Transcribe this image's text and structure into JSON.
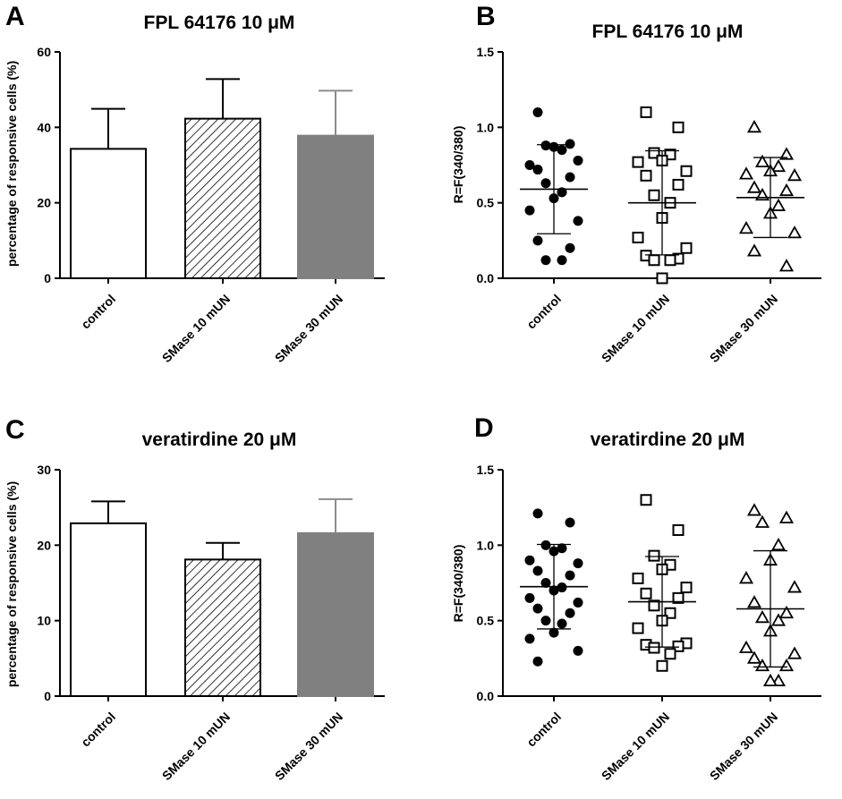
{
  "chart_data": [
    {
      "panel": "A",
      "type": "bar",
      "title": "FPL 64176 10 μM",
      "xlabel": "",
      "ylabel": "percentage of responsive cells (%)",
      "ylim": [
        0,
        60
      ],
      "yticks": [
        0,
        20,
        40,
        60
      ],
      "categories": [
        "control",
        "SMase 10 mUN",
        "SMase 30 mUN"
      ],
      "values": [
        34.3,
        42.3,
        37.8
      ],
      "errors": [
        10.6,
        10.5,
        11.9
      ],
      "fills": [
        "white",
        "hatched",
        "gray"
      ],
      "grid": false
    },
    {
      "panel": "B",
      "type": "scatter",
      "title": "FPL 64176 10 μM",
      "xlabel": "",
      "ylabel": "R=F(340/380)",
      "ylim": [
        0,
        1.5
      ],
      "yticks": [
        0.0,
        0.5,
        1.0,
        1.5
      ],
      "categories": [
        "control",
        "SMase 10 mUN",
        "SMase 30 mUN"
      ],
      "markers": [
        "filled-circle",
        "open-square",
        "open-triangle"
      ],
      "series": [
        {
          "name": "control",
          "mean": 0.59,
          "sd": 0.295,
          "values": [
            1.1,
            0.89,
            0.88,
            0.85,
            0.87,
            0.75,
            0.78,
            0.72,
            0.67,
            0.63,
            0.57,
            0.53,
            0.45,
            0.38,
            0.25,
            0.2,
            0.12,
            0.12
          ]
        },
        {
          "name": "SMase 10 mUN",
          "mean": 0.5,
          "sd": 0.345,
          "values": [
            1.1,
            1.0,
            0.83,
            0.82,
            0.78,
            0.77,
            0.71,
            0.68,
            0.62,
            0.55,
            0.5,
            0.4,
            0.27,
            0.2,
            0.15,
            0.13,
            0.12,
            0.12,
            0.0
          ]
        },
        {
          "name": "SMase 30 mUN",
          "mean": 0.535,
          "sd": 0.265,
          "values": [
            1.0,
            0.82,
            0.77,
            0.74,
            0.71,
            0.69,
            0.68,
            0.6,
            0.58,
            0.55,
            0.48,
            0.43,
            0.33,
            0.3,
            0.18,
            0.08
          ]
        }
      ],
      "grid": false
    },
    {
      "panel": "C",
      "type": "bar",
      "title": "veratirdine 20 μM",
      "xlabel": "",
      "ylabel": "percentage of responsive cells (%)",
      "ylim": [
        0,
        30
      ],
      "yticks": [
        0,
        10,
        20,
        30
      ],
      "categories": [
        "control",
        "SMase 10 mUN",
        "SMase 30 mUN"
      ],
      "values": [
        22.9,
        18.1,
        21.6
      ],
      "errors": [
        2.9,
        2.2,
        4.5
      ],
      "fills": [
        "white",
        "hatched",
        "gray"
      ],
      "grid": false
    },
    {
      "panel": "D",
      "type": "scatter",
      "title": "veratirdine 20 μM",
      "xlabel": "",
      "ylabel": "R=F(340/380)",
      "ylim": [
        0,
        1.5
      ],
      "yticks": [
        0.0,
        0.5,
        1.0,
        1.5
      ],
      "categories": [
        "control",
        "SMase 10 mUN",
        "SMase 30 mUN"
      ],
      "markers": [
        "filled-circle",
        "open-square",
        "open-triangle"
      ],
      "series": [
        {
          "name": "control",
          "mean": 0.725,
          "sd": 0.28,
          "values": [
            1.21,
            1.15,
            1.0,
            0.98,
            0.96,
            0.9,
            0.88,
            0.83,
            0.8,
            0.75,
            0.72,
            0.7,
            0.65,
            0.62,
            0.58,
            0.55,
            0.5,
            0.48,
            0.42,
            0.38,
            0.3,
            0.23
          ]
        },
        {
          "name": "SMase 10 mUN",
          "mean": 0.625,
          "sd": 0.3,
          "values": [
            1.3,
            1.1,
            0.93,
            0.87,
            0.84,
            0.78,
            0.72,
            0.68,
            0.65,
            0.6,
            0.55,
            0.5,
            0.45,
            0.35,
            0.34,
            0.33,
            0.32,
            0.28,
            0.2
          ]
        },
        {
          "name": "SMase 30 mUN",
          "mean": 0.578,
          "sd": 0.385,
          "values": [
            1.23,
            1.18,
            1.15,
            1.0,
            0.9,
            0.78,
            0.72,
            0.62,
            0.55,
            0.52,
            0.5,
            0.43,
            0.32,
            0.28,
            0.25,
            0.2,
            0.2,
            0.1,
            0.1
          ]
        }
      ],
      "grid": false
    }
  ],
  "panel_letters": [
    "A",
    "B",
    "C",
    "D"
  ],
  "colors": {
    "axis": "#000000",
    "bar_gray": "#808080",
    "err_gray": "#8c8c8c",
    "marker": "#000000"
  }
}
